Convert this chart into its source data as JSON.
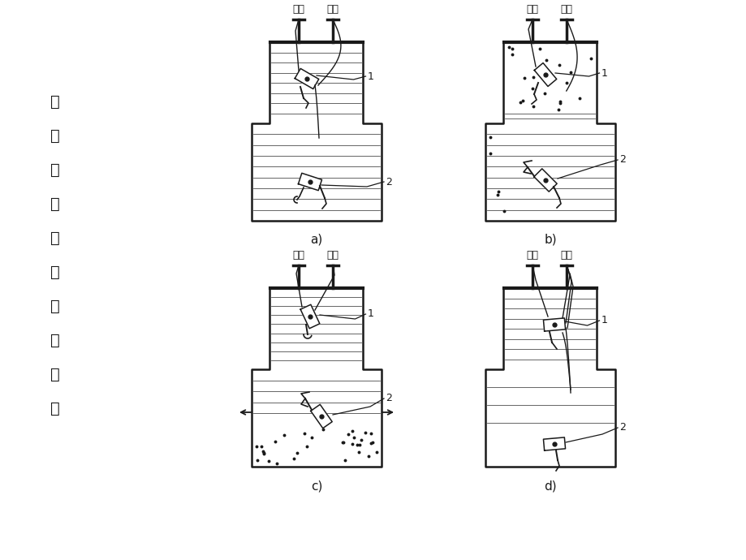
{
  "left_label_chars": [
    "瓦",
    "斯",
    "继",
    "电",
    "器",
    "的",
    "动",
    "作",
    "说",
    "明"
  ],
  "top_label_1": "信号",
  "top_label_2": "跳闸",
  "subfig_labels": [
    "a)",
    "b)",
    "c)",
    "d)"
  ],
  "bg_color": "#ffffff",
  "line_color": "#1a1a1a",
  "fig_width": 9.2,
  "fig_height": 6.9
}
